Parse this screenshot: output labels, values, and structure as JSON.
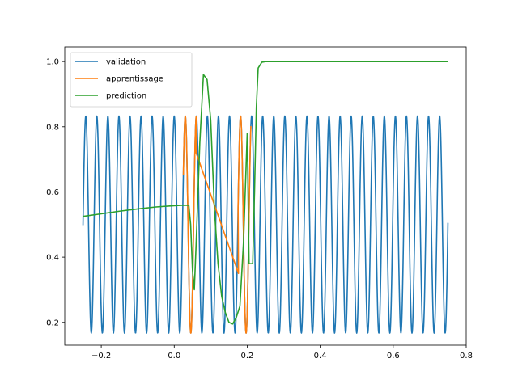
{
  "chart_data": {
    "type": "line",
    "xlim": [
      -0.3,
      0.8
    ],
    "ylim": [
      0.13,
      1.045
    ],
    "xticks": [
      -0.2,
      0.0,
      0.2,
      0.4,
      0.6,
      0.8
    ],
    "xtick_labels": [
      "−0.2",
      "0.0",
      "0.2",
      "0.4",
      "0.6",
      "0.8"
    ],
    "yticks": [
      0.2,
      0.4,
      0.6,
      0.8,
      1.0
    ],
    "ytick_labels": [
      "0.2",
      "0.4",
      "0.6",
      "0.8",
      "1.0"
    ],
    "grid": false,
    "legend_position": "top-left",
    "series": [
      {
        "name": "validation",
        "color": "#1f77b4",
        "kind": "sinusoid",
        "x_range": [
          -0.25,
          0.75
        ],
        "center": 0.5,
        "amplitude": 0.333,
        "period": 0.0303,
        "x0": -0.2424,
        "samples": 1400
      },
      {
        "name": "apprentissage",
        "color": "#ff7f0e",
        "kind": "segments",
        "segments": [
          {
            "x_range": [
              0.025,
              0.06
            ],
            "center": 0.5,
            "amplitude": 0.333,
            "period": 0.0303,
            "x0": -0.2424
          },
          {
            "x_range": [
              0.175,
              0.21
            ],
            "center": 0.5,
            "amplitude": 0.333,
            "period": 0.0303,
            "x0": -0.2424
          }
        ],
        "bridge": [
          [
            0.06,
            0.72
          ],
          [
            0.176,
            0.35
          ]
        ]
      },
      {
        "name": "prediction",
        "color": "#2ca02c",
        "kind": "points",
        "x": [
          -0.25,
          -0.2,
          -0.15,
          -0.1,
          -0.05,
          0.0,
          0.02,
          0.04,
          0.045,
          0.05,
          0.055,
          0.06,
          0.07,
          0.08,
          0.09,
          0.1,
          0.11,
          0.12,
          0.13,
          0.14,
          0.15,
          0.16,
          0.17,
          0.18,
          0.19,
          0.2,
          0.205,
          0.21,
          0.215,
          0.22,
          0.225,
          0.23,
          0.24,
          0.25,
          0.3,
          0.4,
          0.5,
          0.6,
          0.7,
          0.75
        ],
        "y": [
          0.525,
          0.533,
          0.541,
          0.548,
          0.554,
          0.558,
          0.559,
          0.559,
          0.5,
          0.36,
          0.3,
          0.44,
          0.75,
          0.96,
          0.945,
          0.82,
          0.55,
          0.38,
          0.28,
          0.23,
          0.2,
          0.195,
          0.215,
          0.25,
          0.45,
          0.78,
          0.38,
          0.38,
          0.38,
          0.6,
          0.86,
          0.98,
          0.998,
          1.0,
          1.0,
          1.0,
          1.0,
          1.0,
          1.0,
          1.0
        ]
      }
    ]
  }
}
